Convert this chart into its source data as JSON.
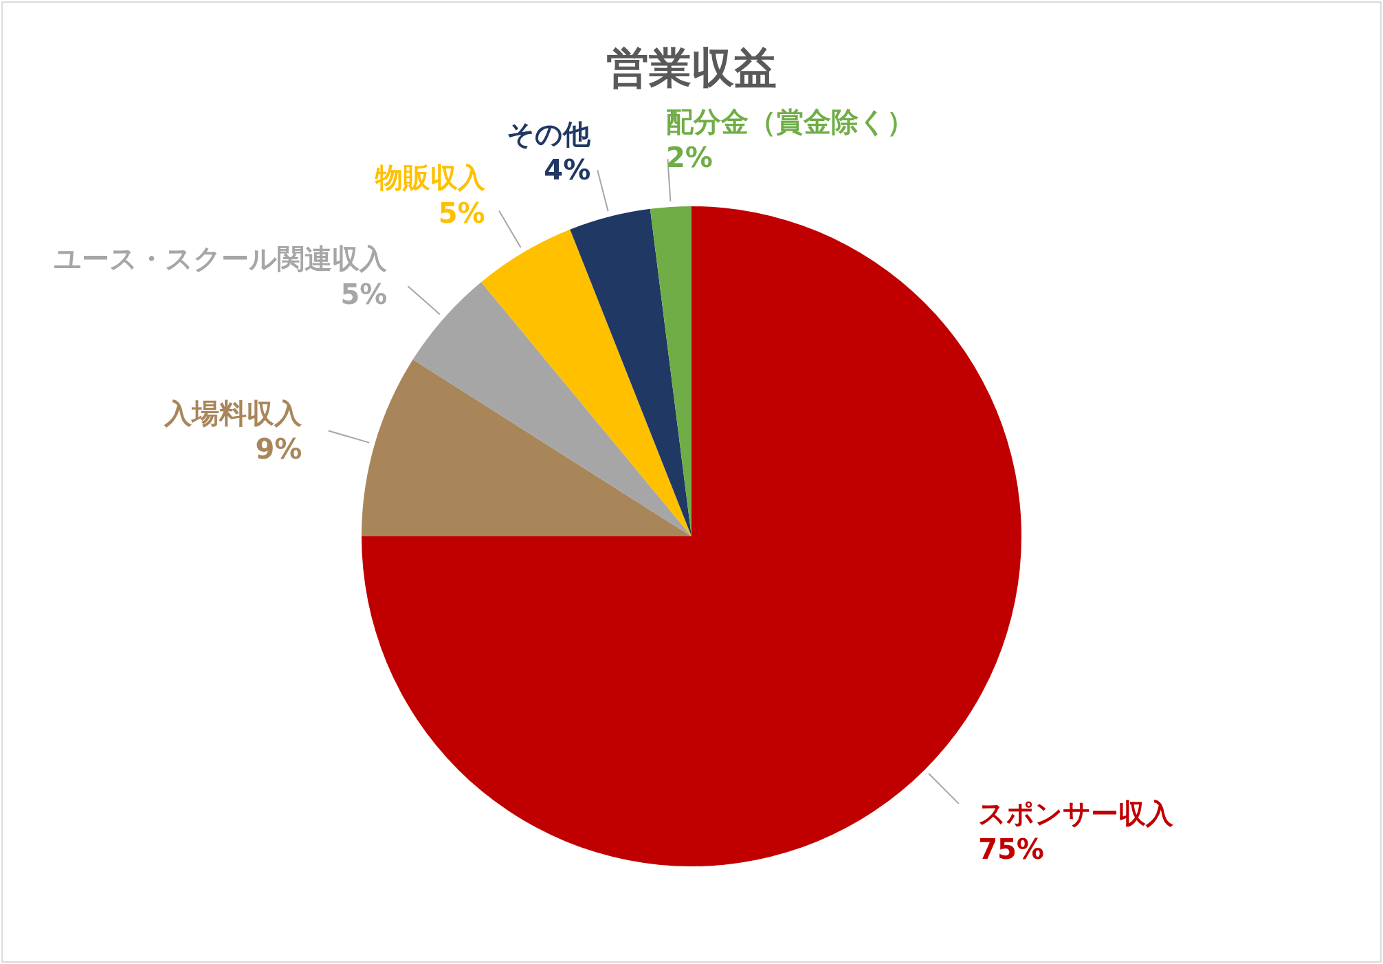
{
  "chart_data": {
    "type": "pie",
    "title": "営業収益",
    "categories": [
      "スポンサー収入",
      "入場料収入",
      "ユース・スクール関連収入",
      "物販収入",
      "その他",
      "配分金（賞金除く）"
    ],
    "values": [
      75,
      9,
      5,
      5,
      4,
      2
    ],
    "value_labels": [
      "75%",
      "9%",
      "5%",
      "5%",
      "4%",
      "2%"
    ],
    "colors": [
      "#c00000",
      "#a9865a",
      "#a6a6a6",
      "#ffc000",
      "#1f3864",
      "#70ad47"
    ]
  }
}
